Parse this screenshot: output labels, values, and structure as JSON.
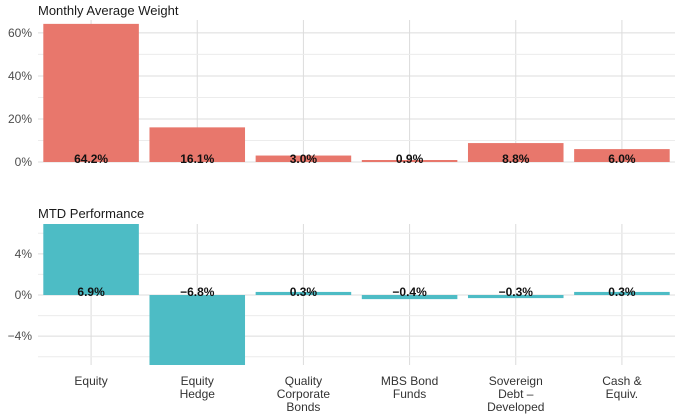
{
  "colors": {
    "weight_bar": "#e8776c",
    "perf_bar": "#4dbcc5"
  },
  "chart_data": {
    "categories": [
      [
        "Equity"
      ],
      [
        "Equity",
        "Hedge"
      ],
      [
        "Quality",
        "Corporate",
        "Bonds"
      ],
      [
        "MBS Bond",
        "Funds"
      ],
      [
        "Sovereign",
        "Debt –",
        "Developed"
      ],
      [
        "Cash &",
        "Equiv."
      ]
    ],
    "panels": [
      {
        "title": "Monthly Average Weight",
        "type": "bar",
        "values": [
          64.2,
          16.1,
          3.0,
          0.9,
          8.8,
          6.0
        ],
        "data_labels": [
          "64.2%",
          "16.1%",
          "3.0%",
          "0.9%",
          "8.8%",
          "6.0%"
        ],
        "yticks": [
          0,
          20,
          40,
          60
        ],
        "ytick_labels": [
          "0%",
          "20%",
          "40%",
          "60%"
        ],
        "ylim": [
          0,
          66
        ]
      },
      {
        "title": "MTD Performance",
        "type": "bar",
        "values": [
          6.9,
          -6.8,
          0.3,
          -0.4,
          -0.3,
          0.3
        ],
        "data_labels": [
          "6.9%",
          "−6.8%",
          "0.3%",
          "−0.4%",
          "−0.3%",
          "0.3%"
        ],
        "yticks": [
          -4,
          0,
          4
        ],
        "ytick_labels": [
          "−4%",
          "0%",
          "4%"
        ],
        "ylim": [
          -6.8,
          6.9
        ]
      }
    ]
  }
}
